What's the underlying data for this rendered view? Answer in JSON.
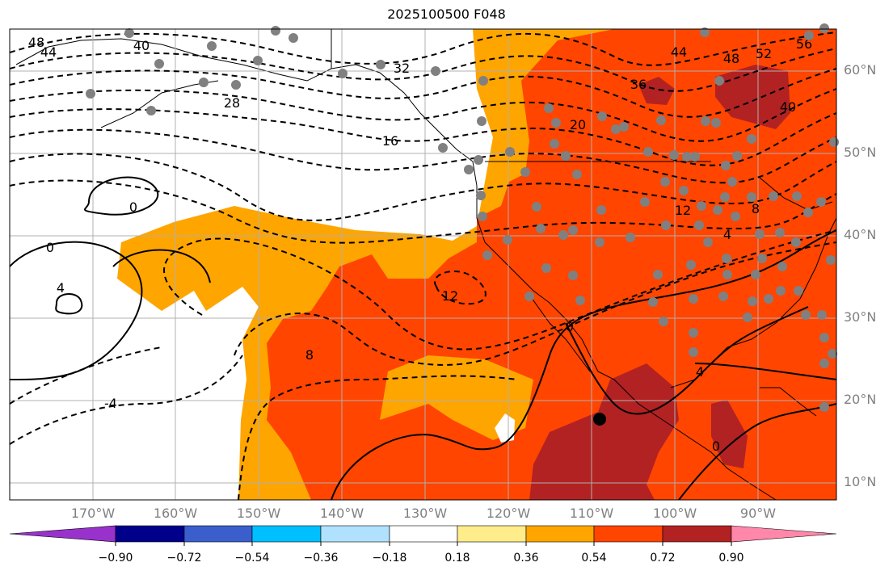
{
  "title": "2025100500 F048",
  "map": {
    "lat_labels": [
      "60°N",
      "50°N",
      "40°N",
      "30°N",
      "20°N",
      "10°N"
    ],
    "lon_labels": [
      "170°W",
      "160°W",
      "150°W",
      "140°W",
      "130°W",
      "120°W",
      "110°W",
      "100°W",
      "90°W"
    ],
    "contour_labels": [
      "48",
      "44",
      "40",
      "32",
      "28",
      "16",
      "20",
      "36",
      "44",
      "48",
      "52",
      "56",
      "40",
      "0",
      "0",
      "4",
      "-4",
      "12",
      "12",
      "8",
      "4",
      "8",
      "0",
      "4",
      "0"
    ],
    "station_marker": "black-dot",
    "point_marker_color": "#808080"
  },
  "colorbar": {
    "ticks": [
      "−0.90",
      "−0.72",
      "−0.54",
      "−0.36",
      "−0.18",
      "0.18",
      "0.36",
      "0.54",
      "0.72",
      "0.90"
    ],
    "colors": [
      "#9932cc",
      "#00008b",
      "#3a5fcd",
      "#00bfff",
      "#b0e2ff",
      "#ffffff",
      "#ffec8b",
      "#ffa500",
      "#ff4500",
      "#b22222",
      "#ff88aa"
    ]
  }
}
